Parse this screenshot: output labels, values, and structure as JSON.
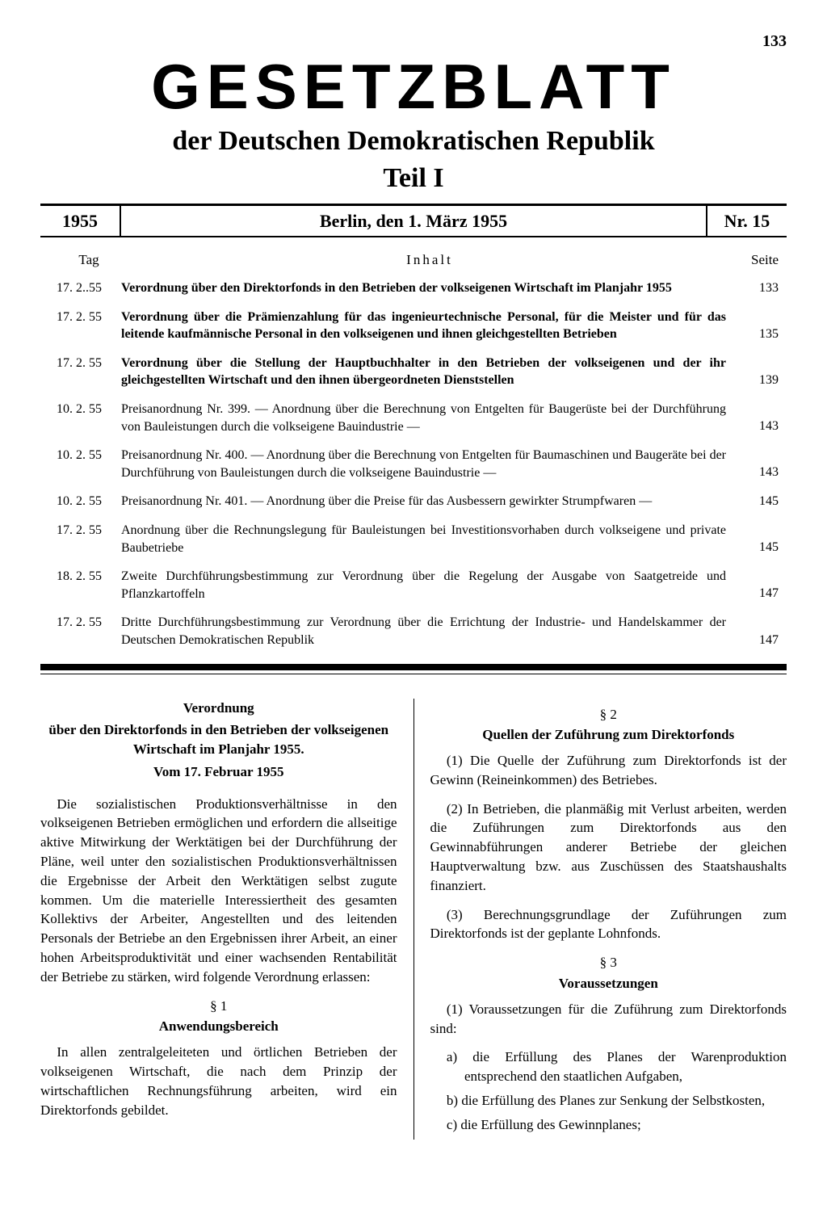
{
  "page_number": "133",
  "masthead": {
    "main_title": "GESETZBLATT",
    "subtitle": "der Deutschen Demokratischen Republik",
    "part": "Teil I"
  },
  "header_bar": {
    "year": "1955",
    "date_location": "Berlin, den 1. März 1955",
    "issue": "Nr. 15"
  },
  "toc": {
    "col_tag": "Tag",
    "col_inhalt": "Inhalt",
    "col_seite": "Seite",
    "entries": [
      {
        "date": "17. 2..55",
        "text": "Verordnung über den Direktorfonds in den Betrieben der volkseigenen Wirtschaft im Planjahr 1955",
        "page": "133",
        "bold": true
      },
      {
        "date": "17. 2. 55",
        "text": "Verordnung über die Prämienzahlung für das ingenieurtechnische Personal, für die Meister und für das leitende kaufmännische Personal in den volkseigenen und ihnen gleichgestellten Betrieben",
        "page": "135",
        "bold": true
      },
      {
        "date": "17. 2. 55",
        "text": "Verordnung über die Stellung der Hauptbuchhalter in den Betrieben der volkseigenen und der ihr gleichgestellten Wirtschaft und den ihnen übergeordneten Dienststellen",
        "page": "139",
        "bold": true
      },
      {
        "date": "10. 2. 55",
        "text": "Preisanordnung Nr. 399. — Anordnung über die Berechnung von Entgelten für Baugerüste bei der Durchführung von Bauleistungen durch die volkseigene Bauindustrie —",
        "page": "143",
        "bold": false
      },
      {
        "date": "10. 2. 55",
        "text": "Preisanordnung Nr. 400. — Anordnung über die Berechnung von Entgelten für Baumaschinen und Baugeräte bei der Durchführung von Bauleistungen durch die volkseigene Bauindustrie —",
        "page": "143",
        "bold": false
      },
      {
        "date": "10. 2. 55",
        "text": "Preisanordnung Nr. 401. — Anordnung über die Preise für das Ausbessern gewirkter Strumpfwaren —",
        "page": "145",
        "bold": false
      },
      {
        "date": "17. 2. 55",
        "text": "Anordnung über die Rechnungslegung für Bauleistungen bei Investitionsvorhaben durch volkseigene und private Baubetriebe",
        "page": "145",
        "bold": false
      },
      {
        "date": "18. 2. 55",
        "text": "Zweite Durchführungsbestimmung zur Verordnung über die Regelung der Ausgabe von Saatgetreide und Pflanzkartoffeln",
        "page": "147",
        "bold": false
      },
      {
        "date": "17. 2. 55",
        "text": "Dritte Durchführungsbestimmung zur Verordnung über die Errichtung der Industrie- und Handelskammer der Deutschen Demokratischen Republik",
        "page": "147",
        "bold": false
      }
    ]
  },
  "article": {
    "left": {
      "title_l1": "Verordnung",
      "title_l2": "über den Direktorfonds in den Betrieben der volkseigenen Wirtschaft im Planjahr 1955.",
      "date": "Vom 17. Februar 1955",
      "intro": "Die sozialistischen Produktionsverhältnisse in den volkseigenen Betrieben ermöglichen und erfordern die allseitige aktive Mitwirkung der Werktätigen bei der Durchführung der Pläne, weil unter den sozialistischen Produktionsverhältnissen die Ergebnisse der Arbeit den Werktätigen selbst zugute kommen. Um die materielle Interessiertheit des gesamten Kollektivs der Arbeiter, Angestellten und des leitenden Personals der Betriebe an den Ergebnissen ihrer Arbeit, an einer hohen Arbeitsproduktivität und einer wachsenden Rentabilität der Betriebe zu stärken, wird folgende Verordnung erlassen:",
      "s1_num": "§ 1",
      "s1_title": "Anwendungsbereich",
      "s1_text": "In allen zentralgeleiteten und örtlichen Betrieben der volkseigenen Wirtschaft, die nach dem Prinzip der wirtschaftlichen Rechnungsführung arbeiten, wird ein Direktorfonds gebildet."
    },
    "right": {
      "s2_num": "§ 2",
      "s2_title": "Quellen der Zuführung zum Direktorfonds",
      "s2_p1": "(1) Die Quelle der Zuführung zum Direktorfonds ist der Gewinn (Reineinkommen) des Betriebes.",
      "s2_p2": "(2) In Betrieben, die planmäßig mit Verlust arbeiten, werden die Zuführungen zum Direktorfonds aus den Gewinnabführungen anderer Betriebe der gleichen Hauptverwaltung bzw. aus Zuschüssen des Staatshaushalts finanziert.",
      "s2_p3": "(3) Berechnungsgrundlage der Zuführungen zum Direktorfonds ist der geplante Lohnfonds.",
      "s3_num": "§ 3",
      "s3_title": "Voraussetzungen",
      "s3_intro": "(1) Voraussetzungen für die Zuführung zum Direktorfonds sind:",
      "s3_a": "a) die Erfüllung des Planes der Warenproduktion entsprechend den staatlichen Aufgaben,",
      "s3_b": "b) die Erfüllung des Planes zur Senkung der Selbstkosten,",
      "s3_c": "c) die Erfüllung des Gewinnplanes;"
    }
  }
}
